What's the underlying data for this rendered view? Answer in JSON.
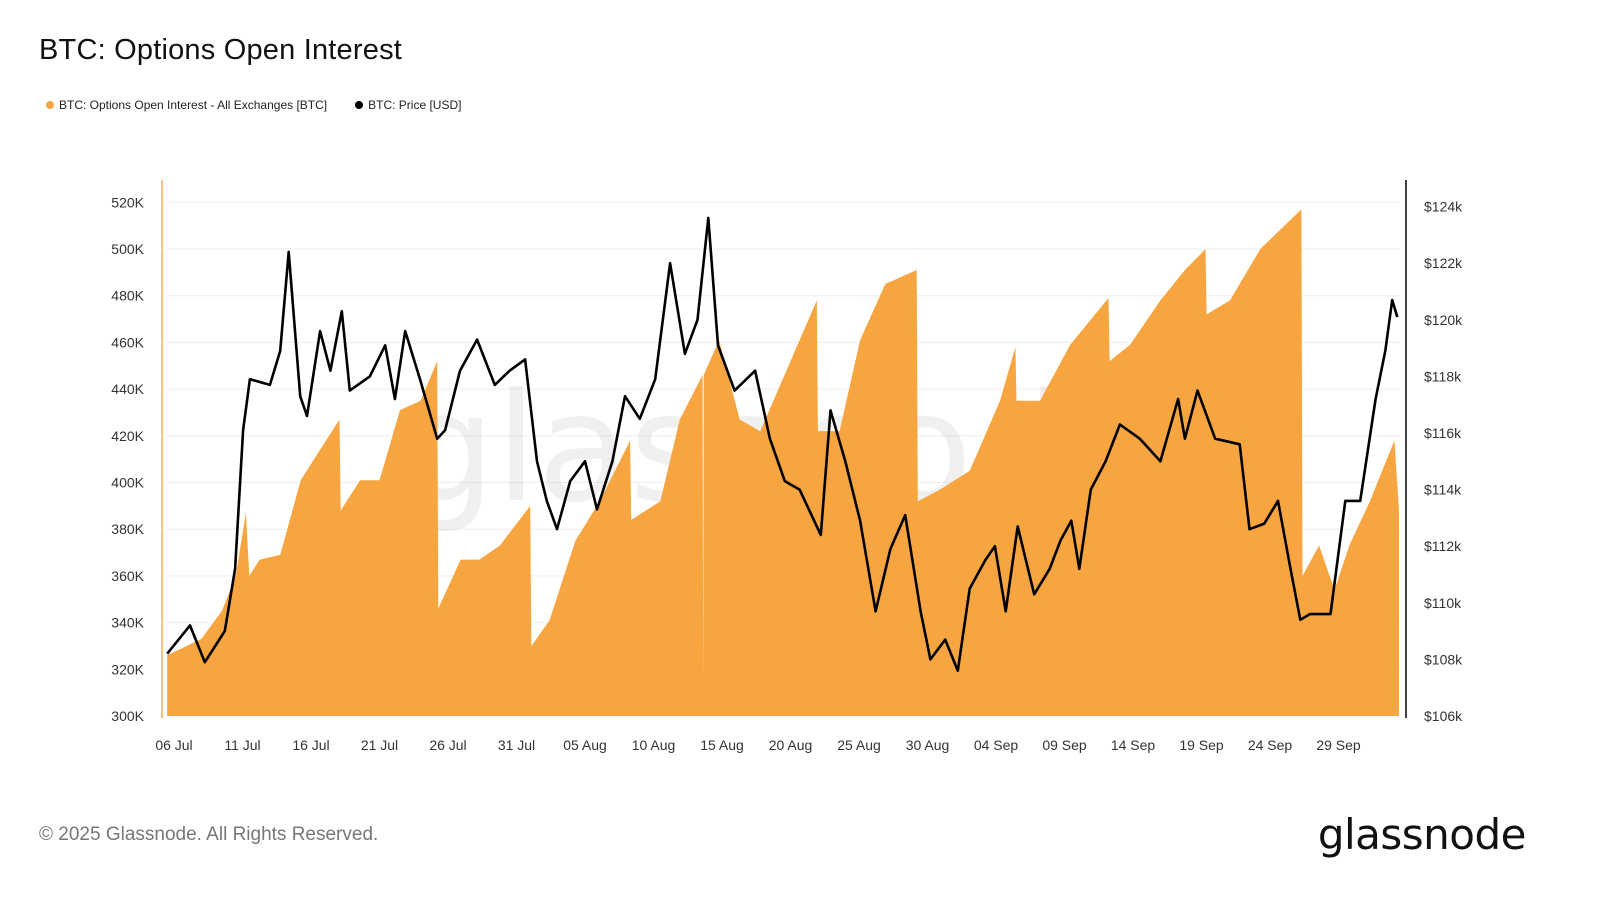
{
  "title": "BTC: Options Open Interest",
  "legend": [
    {
      "label": "BTC: Options Open Interest - All Exchanges [BTC]",
      "color": "#f7a541"
    },
    {
      "label": "BTC: Price [USD]",
      "color": "#000000"
    }
  ],
  "footer": {
    "copyright": "© 2025 Glassnode. All Rights Reserved.",
    "logo": "glassnode"
  },
  "watermark": "glassnode",
  "chart_data": {
    "type": "area+line",
    "title": "BTC: Options Open Interest",
    "grid": true,
    "legend_placement": "top-left",
    "x_tick_labels": [
      "06 Jul",
      "11 Jul",
      "16 Jul",
      "21 Jul",
      "26 Jul",
      "31 Jul",
      "05 Aug",
      "10 Aug",
      "15 Aug",
      "20 Aug",
      "25 Aug",
      "30 Aug",
      "04 Sep",
      "09 Sep",
      "14 Sep",
      "19 Sep",
      "24 Sep",
      "29 Sep"
    ],
    "x_tick_dates": [
      "2025-07-06",
      "2025-07-11",
      "2025-07-16",
      "2025-07-21",
      "2025-07-26",
      "2025-07-31",
      "2025-08-05",
      "2025-08-10",
      "2025-08-15",
      "2025-08-20",
      "2025-08-25",
      "2025-08-30",
      "2025-09-04",
      "2025-09-09",
      "2025-09-14",
      "2025-09-19",
      "2025-09-24",
      "2025-09-29"
    ],
    "x_range": [
      "2025-07-05 12:00",
      "2025-10-03 10:00"
    ],
    "left_axis": {
      "range": [
        300,
        530
      ],
      "ticks": [
        300,
        320,
        340,
        360,
        380,
        400,
        420,
        440,
        460,
        480,
        500,
        520
      ],
      "tick_labels": [
        "300K",
        "320K",
        "340K",
        "360K",
        "380K",
        "400K",
        "420K",
        "440K",
        "460K",
        "480K",
        "500K",
        "520K"
      ],
      "unit": "K BTC"
    },
    "right_axis": {
      "range": [
        106,
        124.4
      ],
      "ticks": [
        106,
        108,
        110,
        112,
        114,
        116,
        118,
        120,
        122,
        124
      ],
      "tick_labels": [
        "$106k",
        "$108k",
        "$110k",
        "$112k",
        "$114k",
        "$116k",
        "$118k",
        "$120k",
        "$122k",
        "$124k"
      ],
      "unit": "k USD"
    },
    "series": [
      {
        "name": "BTC: Options Open Interest - All Exchanges [BTC]",
        "axis": "left",
        "style": "area",
        "color": "#f7a541",
        "points": [
          [
            "2025-07-05 12:00",
            326
          ],
          [
            "2025-07-08 00:00",
            333
          ],
          [
            "2025-07-09 12:00",
            345
          ],
          [
            "2025-07-10 12:00",
            360
          ],
          [
            "2025-07-11 06:00",
            387
          ],
          [
            "2025-07-11 12:00",
            360
          ],
          [
            "2025-07-12 06:00",
            367
          ],
          [
            "2025-07-13 18:00",
            369
          ],
          [
            "2025-07-15 06:00",
            401
          ],
          [
            "2025-07-16 16:00",
            414
          ],
          [
            "2025-07-18 02:00",
            427
          ],
          [
            "2025-07-18 04:00",
            388
          ],
          [
            "2025-07-19 14:00",
            401
          ],
          [
            "2025-07-21 00:00",
            401
          ],
          [
            "2025-07-22 12:00",
            431
          ],
          [
            "2025-07-24 00:00",
            435
          ],
          [
            "2025-07-25 05:00",
            452
          ],
          [
            "2025-07-25 07:00",
            346
          ],
          [
            "2025-07-26 22:00",
            367
          ],
          [
            "2025-07-28 07:00",
            367
          ],
          [
            "2025-07-29 19:00",
            373
          ],
          [
            "2025-08-01 00:00",
            390
          ],
          [
            "2025-08-01 02:00",
            330
          ],
          [
            "2025-08-02 10:00",
            341
          ],
          [
            "2025-08-04 07:00",
            375
          ],
          [
            "2025-08-06 02:00",
            392
          ],
          [
            "2025-08-08 07:00",
            418
          ],
          [
            "2025-08-08 09:00",
            384
          ],
          [
            "2025-08-10 12:00",
            392
          ],
          [
            "2025-08-11 22:00",
            427
          ],
          [
            "2025-08-13 14:00",
            446
          ],
          [
            "2025-08-13 15:00",
            312
          ],
          [
            "2025-08-13 16:00",
            446
          ],
          [
            "2025-08-14 19:00",
            461
          ],
          [
            "2025-08-16 07:00",
            427
          ],
          [
            "2025-08-17 19:00",
            422
          ],
          [
            "2025-08-20 00:00",
            452
          ],
          [
            "2025-08-21 22:00",
            478
          ],
          [
            "2025-08-22 00:00",
            422
          ],
          [
            "2025-08-23 14:00",
            422
          ],
          [
            "2025-08-25 02:00",
            461
          ],
          [
            "2025-08-26 22:00",
            485
          ],
          [
            "2025-08-29 05:00",
            491
          ],
          [
            "2025-08-29 07:00",
            392
          ],
          [
            "2025-08-30 22:00",
            397
          ],
          [
            "2025-09-02 02:00",
            405
          ],
          [
            "2025-09-04 07:00",
            435
          ],
          [
            "2025-09-05 10:00",
            458
          ],
          [
            "2025-09-05 12:00",
            435
          ],
          [
            "2025-09-07 05:00",
            435
          ],
          [
            "2025-09-09 10:00",
            459
          ],
          [
            "2025-09-12 05:00",
            479
          ],
          [
            "2025-09-12 07:00",
            452
          ],
          [
            "2025-09-13 19:00",
            459
          ],
          [
            "2025-09-16 00:00",
            478
          ],
          [
            "2025-09-17 19:00",
            491
          ],
          [
            "2025-09-19 07:00",
            500
          ],
          [
            "2025-09-19 09:00",
            472
          ],
          [
            "2025-09-21 02:00",
            478
          ],
          [
            "2025-09-23 07:00",
            500
          ],
          [
            "2025-09-24 17:00",
            508
          ],
          [
            "2025-09-26 07:00",
            517
          ],
          [
            "2025-09-26 09:00",
            360
          ],
          [
            "2025-09-27 14:00",
            373
          ],
          [
            "2025-09-28 17:00",
            354
          ],
          [
            "2025-09-29 19:00",
            373
          ],
          [
            "2025-10-01 07:00",
            392
          ],
          [
            "2025-10-03 02:00",
            418
          ],
          [
            "2025-10-03 10:00",
            388
          ]
        ]
      },
      {
        "name": "BTC: Price [USD]",
        "axis": "right",
        "style": "line",
        "color": "#000000",
        "points": [
          [
            "2025-07-05 12:00",
            108.2
          ],
          [
            "2025-07-07 04:00",
            109.2
          ],
          [
            "2025-07-08 06:00",
            107.9
          ],
          [
            "2025-07-09 17:00",
            109.0
          ],
          [
            "2025-07-10 11:00",
            111.2
          ],
          [
            "2025-07-11 01:00",
            116.1
          ],
          [
            "2025-07-11 13:00",
            117.9
          ],
          [
            "2025-07-13 00:00",
            117.7
          ],
          [
            "2025-07-13 18:00",
            118.9
          ],
          [
            "2025-07-14 09:00",
            122.4
          ],
          [
            "2025-07-15 05:00",
            117.3
          ],
          [
            "2025-07-15 17:00",
            116.6
          ],
          [
            "2025-07-16 16:00",
            119.6
          ],
          [
            "2025-07-17 10:00",
            118.2
          ],
          [
            "2025-07-18 06:00",
            120.3
          ],
          [
            "2025-07-18 20:00",
            117.5
          ],
          [
            "2025-07-20 07:00",
            118.0
          ],
          [
            "2025-07-21 10:00",
            119.1
          ],
          [
            "2025-07-22 03:00",
            117.2
          ],
          [
            "2025-07-22 21:00",
            119.6
          ],
          [
            "2025-07-23 23:00",
            117.9
          ],
          [
            "2025-07-25 05:00",
            115.8
          ],
          [
            "2025-07-25 19:00",
            116.1
          ],
          [
            "2025-07-26 21:00",
            118.2
          ],
          [
            "2025-07-28 03:00",
            119.3
          ],
          [
            "2025-07-29 10:00",
            117.7
          ],
          [
            "2025-07-30 12:00",
            118.2
          ],
          [
            "2025-07-31 15:00",
            118.6
          ],
          [
            "2025-08-01 12:00",
            115.0
          ],
          [
            "2025-08-02 05:00",
            113.6
          ],
          [
            "2025-08-02 23:00",
            112.6
          ],
          [
            "2025-08-03 22:00",
            114.3
          ],
          [
            "2025-08-05 00:00",
            115.0
          ],
          [
            "2025-08-05 21:00",
            113.3
          ],
          [
            "2025-08-07 00:00",
            115.0
          ],
          [
            "2025-08-07 22:00",
            117.3
          ],
          [
            "2025-08-09 00:00",
            116.5
          ],
          [
            "2025-08-10 03:00",
            117.9
          ],
          [
            "2025-08-11 05:00",
            122.0
          ],
          [
            "2025-08-12 07:00",
            118.8
          ],
          [
            "2025-08-13 05:00",
            120.0
          ],
          [
            "2025-08-14 00:00",
            123.6
          ],
          [
            "2025-08-14 17:00",
            119.1
          ],
          [
            "2025-08-15 22:00",
            117.5
          ],
          [
            "2025-08-17 10:00",
            118.2
          ],
          [
            "2025-08-18 12:00",
            115.8
          ],
          [
            "2025-08-19 14:00",
            114.3
          ],
          [
            "2025-08-20 16:00",
            114.0
          ],
          [
            "2025-08-22 05:00",
            112.4
          ],
          [
            "2025-08-22 22:00",
            116.8
          ],
          [
            "2025-08-24 00:00",
            115.0
          ],
          [
            "2025-08-25 02:00",
            112.9
          ],
          [
            "2025-08-26 05:00",
            109.7
          ],
          [
            "2025-08-27 07:00",
            111.9
          ],
          [
            "2025-08-28 09:00",
            113.1
          ],
          [
            "2025-08-29 12:00",
            109.7
          ],
          [
            "2025-08-30 05:00",
            108.0
          ],
          [
            "2025-08-31 07:00",
            108.7
          ],
          [
            "2025-09-01 05:00",
            107.6
          ],
          [
            "2025-09-02 02:00",
            110.5
          ],
          [
            "2025-09-03 05:00",
            111.5
          ],
          [
            "2025-09-03 22:00",
            112.0
          ],
          [
            "2025-09-04 17:00",
            109.7
          ],
          [
            "2025-09-05 14:00",
            112.7
          ],
          [
            "2025-09-06 19:00",
            110.3
          ],
          [
            "2025-09-07 22:00",
            111.2
          ],
          [
            "2025-09-08 17:00",
            112.2
          ],
          [
            "2025-09-09 12:00",
            112.9
          ],
          [
            "2025-09-10 02:00",
            111.2
          ],
          [
            "2025-09-10 22:00",
            114.0
          ],
          [
            "2025-09-12 00:00",
            115.0
          ],
          [
            "2025-09-13 01:00",
            116.3
          ],
          [
            "2025-09-14 12:00",
            115.8
          ],
          [
            "2025-09-16 00:00",
            115.0
          ],
          [
            "2025-09-17 07:00",
            117.2
          ],
          [
            "2025-09-17 19:00",
            115.8
          ],
          [
            "2025-09-18 17:00",
            117.5
          ],
          [
            "2025-09-20 00:00",
            115.8
          ],
          [
            "2025-09-21 19:00",
            115.6
          ],
          [
            "2025-09-22 12:00",
            112.6
          ],
          [
            "2025-09-23 14:00",
            112.8
          ],
          [
            "2025-09-24 14:00",
            113.6
          ],
          [
            "2025-09-25 12:00",
            111.2
          ],
          [
            "2025-09-26 05:00",
            109.4
          ],
          [
            "2025-09-26 22:00",
            109.6
          ],
          [
            "2025-09-28 10:00",
            109.6
          ],
          [
            "2025-09-29 12:00",
            113.6
          ],
          [
            "2025-09-30 14:00",
            113.6
          ],
          [
            "2025-10-01 17:00",
            117.2
          ],
          [
            "2025-10-02 10:00",
            118.9
          ],
          [
            "2025-10-02 22:00",
            120.7
          ],
          [
            "2025-10-03 07:00",
            120.1
          ]
        ]
      }
    ]
  }
}
